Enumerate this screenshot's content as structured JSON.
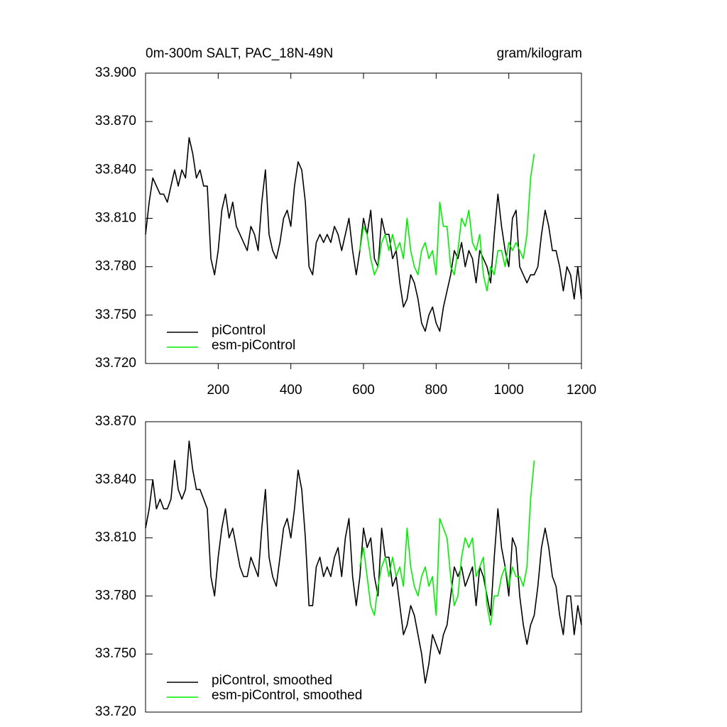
{
  "chart_data": [
    {
      "type": "line",
      "title": "0m-300m SALT, PAC_18N-49N",
      "units": "gram/kilogram",
      "xlim": [
        0,
        1200
      ],
      "xticks": [
        200,
        400,
        600,
        800,
        1000,
        1200
      ],
      "ylim": [
        33.72,
        33.9
      ],
      "yticks": [
        {
          "value": 33.72,
          "label": "33.720"
        },
        {
          "value": 33.75,
          "label": "33.750"
        },
        {
          "value": 33.78,
          "label": "33.780"
        },
        {
          "value": 33.81,
          "label": "33.810"
        },
        {
          "value": 33.84,
          "label": "33.840"
        },
        {
          "value": 33.87,
          "label": "33.870"
        },
        {
          "value": 33.9,
          "label": "33.900"
        }
      ],
      "series": [
        {
          "name": "piControl",
          "color": "#000000",
          "x": [
            0,
            10,
            20,
            30,
            40,
            50,
            60,
            70,
            80,
            90,
            100,
            110,
            120,
            130,
            140,
            150,
            160,
            170,
            180,
            190,
            200,
            210,
            220,
            230,
            240,
            250,
            260,
            270,
            280,
            290,
            300,
            310,
            320,
            330,
            340,
            350,
            360,
            370,
            380,
            390,
            400,
            410,
            420,
            430,
            440,
            450,
            460,
            470,
            480,
            490,
            500,
            510,
            520,
            530,
            540,
            550,
            560,
            570,
            580,
            590,
            600,
            610,
            620,
            630,
            640,
            650,
            660,
            670,
            680,
            690,
            700,
            710,
            720,
            730,
            740,
            750,
            760,
            770,
            780,
            790,
            800,
            810,
            820,
            830,
            840,
            850,
            860,
            870,
            880,
            890,
            900,
            910,
            920,
            930,
            940,
            950,
            960,
            970,
            980,
            990,
            1000,
            1010,
            1020,
            1030,
            1040,
            1050,
            1060,
            1070,
            1080,
            1090,
            1100,
            1110,
            1120,
            1130,
            1140,
            1150,
            1160,
            1170,
            1180,
            1190,
            1200
          ],
          "values": [
            33.8,
            33.82,
            33.835,
            33.83,
            33.825,
            33.825,
            33.82,
            33.83,
            33.84,
            33.83,
            33.84,
            33.835,
            33.86,
            33.85,
            33.835,
            33.84,
            33.83,
            33.83,
            33.785,
            33.775,
            33.79,
            33.815,
            33.825,
            33.81,
            33.82,
            33.805,
            33.8,
            33.795,
            33.79,
            33.805,
            33.8,
            33.79,
            33.82,
            33.84,
            33.8,
            33.79,
            33.785,
            33.795,
            33.81,
            33.815,
            33.805,
            33.83,
            33.845,
            33.84,
            33.82,
            33.78,
            33.775,
            33.795,
            33.8,
            33.795,
            33.8,
            33.795,
            33.805,
            33.8,
            33.79,
            33.8,
            33.81,
            33.79,
            33.775,
            33.79,
            33.81,
            33.8,
            33.815,
            33.785,
            33.78,
            33.81,
            33.8,
            33.8,
            33.785,
            33.79,
            33.77,
            33.755,
            33.76,
            33.775,
            33.77,
            33.76,
            33.745,
            33.74,
            33.75,
            33.755,
            33.745,
            33.74,
            33.755,
            33.765,
            33.775,
            33.79,
            33.785,
            33.795,
            33.78,
            33.79,
            33.785,
            33.77,
            33.79,
            33.785,
            33.78,
            33.77,
            33.8,
            33.825,
            33.805,
            33.79,
            33.78,
            33.81,
            33.815,
            33.78,
            33.775,
            33.77,
            33.775,
            33.775,
            33.78,
            33.8,
            33.815,
            33.805,
            33.79,
            33.79,
            33.78,
            33.765,
            33.78,
            33.775,
            33.76,
            33.78,
            33.76
          ]
        },
        {
          "name": "esm-piControl",
          "color": "#00ee00",
          "x": [
            590,
            600,
            610,
            620,
            630,
            640,
            650,
            660,
            670,
            680,
            690,
            700,
            710,
            720,
            730,
            740,
            750,
            760,
            770,
            780,
            790,
            800,
            810,
            820,
            830,
            840,
            850,
            860,
            870,
            880,
            890,
            900,
            910,
            920,
            930,
            940,
            950,
            960,
            970,
            980,
            990,
            1000,
            1010,
            1020,
            1030,
            1040,
            1050,
            1060,
            1070
          ],
          "values": [
            33.79,
            33.805,
            33.8,
            33.785,
            33.775,
            33.78,
            33.795,
            33.8,
            33.79,
            33.8,
            33.79,
            33.795,
            33.785,
            33.81,
            33.79,
            33.78,
            33.775,
            33.79,
            33.795,
            33.785,
            33.79,
            33.775,
            33.82,
            33.805,
            33.805,
            33.78,
            33.775,
            33.79,
            33.81,
            33.805,
            33.815,
            33.795,
            33.79,
            33.8,
            33.775,
            33.765,
            33.78,
            33.775,
            33.79,
            33.79,
            33.78,
            33.795,
            33.79,
            33.795,
            33.79,
            33.785,
            33.8,
            33.835,
            33.85
          ]
        }
      ]
    },
    {
      "type": "line",
      "xlim": [
        0,
        1200
      ],
      "ylim": [
        33.72,
        33.87
      ],
      "yticks": [
        {
          "value": 33.72,
          "label": "33.720"
        },
        {
          "value": 33.75,
          "label": "33.750"
        },
        {
          "value": 33.78,
          "label": "33.780"
        },
        {
          "value": 33.81,
          "label": "33.810"
        },
        {
          "value": 33.84,
          "label": "33.840"
        },
        {
          "value": 33.87,
          "label": "33.870"
        }
      ],
      "series": [
        {
          "name": "piControl, smoothed",
          "color": "#000000",
          "x": [
            0,
            10,
            20,
            30,
            40,
            50,
            60,
            70,
            80,
            90,
            100,
            110,
            120,
            130,
            140,
            150,
            160,
            170,
            180,
            190,
            200,
            210,
            220,
            230,
            240,
            250,
            260,
            270,
            280,
            290,
            300,
            310,
            320,
            330,
            340,
            350,
            360,
            370,
            380,
            390,
            400,
            410,
            420,
            430,
            440,
            450,
            460,
            470,
            480,
            490,
            500,
            510,
            520,
            530,
            540,
            550,
            560,
            570,
            580,
            590,
            600,
            610,
            620,
            630,
            640,
            650,
            660,
            670,
            680,
            690,
            700,
            710,
            720,
            730,
            740,
            750,
            760,
            770,
            780,
            790,
            800,
            810,
            820,
            830,
            840,
            850,
            860,
            870,
            880,
            890,
            900,
            910,
            920,
            930,
            940,
            950,
            960,
            970,
            980,
            990,
            1000,
            1010,
            1020,
            1030,
            1040,
            1050,
            1060,
            1070,
            1080,
            1090,
            1100,
            1110,
            1120,
            1130,
            1140,
            1150,
            1160,
            1170,
            1180,
            1190,
            1200
          ],
          "values": [
            33.815,
            33.825,
            33.84,
            33.825,
            33.83,
            33.825,
            33.825,
            33.83,
            33.85,
            33.835,
            33.83,
            33.835,
            33.86,
            33.845,
            33.835,
            33.835,
            33.83,
            33.825,
            33.79,
            33.78,
            33.8,
            33.815,
            33.825,
            33.81,
            33.815,
            33.805,
            33.795,
            33.79,
            33.79,
            33.8,
            33.795,
            33.79,
            33.815,
            33.835,
            33.8,
            33.79,
            33.785,
            33.8,
            33.815,
            33.82,
            33.81,
            33.825,
            33.845,
            33.835,
            33.81,
            33.775,
            33.775,
            33.795,
            33.8,
            33.79,
            33.795,
            33.79,
            33.8,
            33.805,
            33.79,
            33.81,
            33.82,
            33.79,
            33.775,
            33.79,
            33.815,
            33.805,
            33.81,
            33.79,
            33.78,
            33.815,
            33.8,
            33.8,
            33.785,
            33.79,
            33.775,
            33.76,
            33.765,
            33.775,
            33.77,
            33.76,
            33.75,
            33.735,
            33.745,
            33.76,
            33.755,
            33.75,
            33.76,
            33.765,
            33.78,
            33.795,
            33.79,
            33.795,
            33.785,
            33.79,
            33.795,
            33.775,
            33.795,
            33.79,
            33.78,
            33.77,
            33.8,
            33.825,
            33.805,
            33.795,
            33.78,
            33.81,
            33.805,
            33.78,
            33.765,
            33.755,
            33.765,
            33.77,
            33.785,
            33.805,
            33.815,
            33.805,
            33.79,
            33.785,
            33.77,
            33.76,
            33.78,
            33.78,
            33.76,
            33.775,
            33.765
          ]
        },
        {
          "name": "esm-piControl, smoothed",
          "color": "#00ee00",
          "x": [
            590,
            600,
            610,
            620,
            630,
            640,
            650,
            660,
            670,
            680,
            690,
            700,
            710,
            720,
            730,
            740,
            750,
            760,
            770,
            780,
            790,
            800,
            810,
            820,
            830,
            840,
            850,
            860,
            870,
            880,
            890,
            900,
            910,
            920,
            930,
            940,
            950,
            960,
            970,
            980,
            990,
            1000,
            1010,
            1020,
            1030,
            1040,
            1050,
            1060,
            1070
          ],
          "values": [
            33.795,
            33.805,
            33.79,
            33.775,
            33.77,
            33.785,
            33.795,
            33.8,
            33.79,
            33.8,
            33.79,
            33.795,
            33.785,
            33.815,
            33.795,
            33.785,
            33.78,
            33.79,
            33.795,
            33.785,
            33.79,
            33.77,
            33.82,
            33.815,
            33.81,
            33.79,
            33.775,
            33.78,
            33.8,
            33.81,
            33.805,
            33.81,
            33.79,
            33.795,
            33.8,
            33.775,
            33.765,
            33.78,
            33.78,
            33.79,
            33.795,
            33.785,
            33.795,
            33.79,
            33.79,
            33.785,
            33.795,
            33.83,
            33.85
          ]
        }
      ]
    }
  ]
}
